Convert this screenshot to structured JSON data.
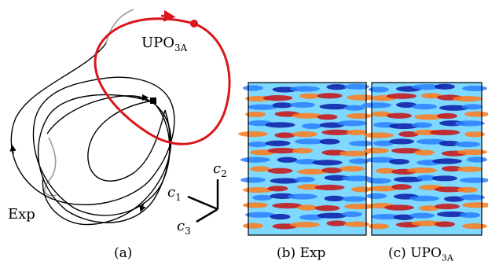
{
  "panel_a": {
    "upo_label": "UPO",
    "upo_subscript": "3A",
    "exp_label": "Exp",
    "axes": {
      "c1": "c",
      "c1_sub": "1",
      "c2": "c",
      "c2_sub": "2",
      "c3": "c",
      "c3_sub": "3"
    },
    "colors": {
      "upo": "#d8161c",
      "trajectory": "#000000",
      "transient": "#9a9a9a"
    }
  },
  "captions": {
    "a": "(a)",
    "b_prefix": "(b)",
    "b_name": "Exp",
    "c_prefix": "(c)",
    "c_name": "UPO",
    "c_sub": "3A"
  },
  "colormap": [
    "#0a1aa6",
    "#2a7fff",
    "#7fd9ff",
    "#9be08f",
    "#f2e23a",
    "#ff7a1a",
    "#c81010"
  ]
}
